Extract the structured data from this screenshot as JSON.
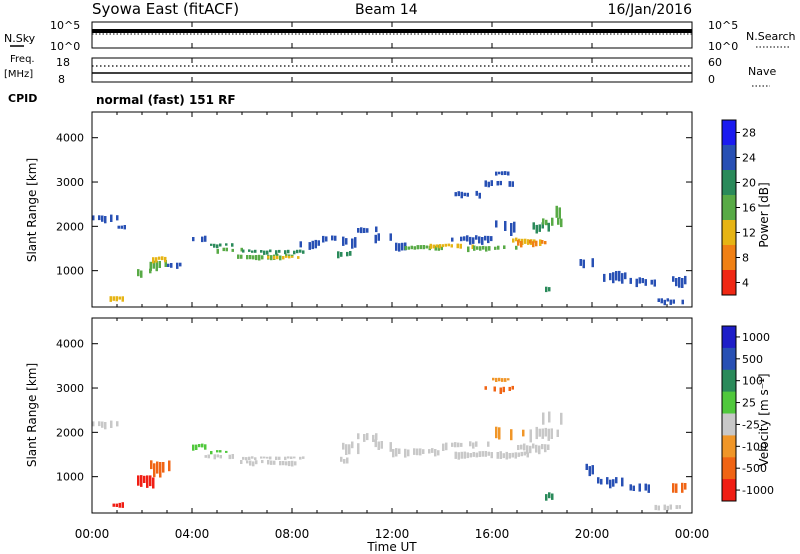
{
  "header": {
    "title": "Syowa East (fitACF)",
    "beam": "Beam 14",
    "date": "16/Jan/2016",
    "cpid_label": "CPID",
    "cpid_value": "normal (fast) 151 RF"
  },
  "small_panels": {
    "nsky": {
      "left_label": "N.Sky",
      "right_label": "N.Search",
      "left_ticks": [
        "10^5",
        "10^0"
      ],
      "right_ticks": [
        "10^5",
        "10^0"
      ]
    },
    "freq": {
      "left_label_1": "Freq.",
      "left_label_2": "[MHz]",
      "right_label": "Nave",
      "left_ticks": [
        "18",
        "8"
      ],
      "right_ticks": [
        "60",
        "0"
      ]
    }
  },
  "chart_data": [
    {
      "type": "heatmap",
      "name": "power",
      "ylabel": "Slant Range [km]",
      "ylim": [
        180,
        4580
      ],
      "yticks": [
        1000,
        2000,
        3000,
        4000
      ],
      "colorbar_label": "Power [dB]",
      "colorbar_ticks": [
        "4",
        "8",
        "12",
        "16",
        "20",
        "24",
        "28"
      ],
      "colorbar_colors": [
        "#1b1bf0",
        "#2850b4",
        "#2a8a5a",
        "#58aa46",
        "#e6b414",
        "#f08014",
        "#f02814"
      ],
      "segments": [
        {
          "t0": 0.0,
          "t1": 1.0,
          "r0": 2080,
          "r1": 2280,
          "c": 1
        },
        {
          "t0": 0.9,
          "t1": 1.3,
          "r0": 1930,
          "r1": 2050,
          "c": 1
        },
        {
          "t0": 0.7,
          "t1": 1.2,
          "r0": 300,
          "r1": 430,
          "c": 4
        },
        {
          "t0": 1.8,
          "t1": 2.3,
          "r0": 850,
          "r1": 1050,
          "c": 3
        },
        {
          "t0": 2.3,
          "t1": 3.0,
          "r0": 1000,
          "r1": 1250,
          "c": 3
        },
        {
          "t0": 2.4,
          "t1": 3.0,
          "r0": 1200,
          "r1": 1340,
          "c": 4
        },
        {
          "t0": 3.0,
          "t1": 3.6,
          "r0": 1050,
          "r1": 1200,
          "c": 1
        },
        {
          "t0": 4.0,
          "t1": 4.6,
          "r0": 1650,
          "r1": 1800,
          "c": 1
        },
        {
          "t0": 4.5,
          "t1": 6.0,
          "r0": 1400,
          "r1": 1520,
          "c": 3
        },
        {
          "t0": 4.6,
          "t1": 5.6,
          "r0": 1520,
          "r1": 1620,
          "c": 2
        },
        {
          "t0": 5.8,
          "t1": 8.0,
          "r0": 1250,
          "r1": 1380,
          "c": 3
        },
        {
          "t0": 7.0,
          "t1": 8.3,
          "r0": 1260,
          "r1": 1340,
          "c": 4
        },
        {
          "t0": 6.0,
          "t1": 8.5,
          "r0": 1380,
          "r1": 1480,
          "c": 2
        },
        {
          "t0": 8.3,
          "t1": 9.2,
          "r0": 1500,
          "r1": 1700,
          "c": 1
        },
        {
          "t0": 9.2,
          "t1": 9.7,
          "r0": 1650,
          "r1": 1800,
          "c": 1
        },
        {
          "t0": 9.8,
          "t1": 10.3,
          "r0": 1250,
          "r1": 1450,
          "c": 2
        },
        {
          "t0": 10.0,
          "t1": 10.7,
          "r0": 1550,
          "r1": 1800,
          "c": 1
        },
        {
          "t0": 10.6,
          "t1": 11.4,
          "r0": 1800,
          "r1": 2000,
          "c": 1
        },
        {
          "t0": 11.3,
          "t1": 12.0,
          "r0": 1600,
          "r1": 1850,
          "c": 1
        },
        {
          "t0": 12.0,
          "t1": 12.5,
          "r0": 1450,
          "r1": 1650,
          "c": 1
        },
        {
          "t0": 12.5,
          "t1": 14.0,
          "r0": 1450,
          "r1": 1580,
          "c": 3
        },
        {
          "t0": 13.5,
          "t1": 15.2,
          "r0": 1500,
          "r1": 1620,
          "c": 4
        },
        {
          "t0": 14.0,
          "t1": 16.0,
          "r0": 1620,
          "r1": 1800,
          "c": 1
        },
        {
          "t0": 15.0,
          "t1": 17.0,
          "r0": 1450,
          "r1": 1580,
          "c": 3
        },
        {
          "t0": 16.0,
          "t1": 17.0,
          "r0": 1850,
          "r1": 2150,
          "c": 1
        },
        {
          "t0": 16.8,
          "t1": 18.0,
          "r0": 1600,
          "r1": 1750,
          "c": 4
        },
        {
          "t0": 17.0,
          "t1": 18.2,
          "r0": 1550,
          "r1": 1700,
          "c": 5
        },
        {
          "t0": 17.5,
          "t1": 18.5,
          "r0": 1850,
          "r1": 2100,
          "c": 2
        },
        {
          "t0": 18.0,
          "t1": 18.8,
          "r0": 2000,
          "r1": 2200,
          "c": 3
        },
        {
          "t0": 18.3,
          "t1": 18.9,
          "r0": 2200,
          "r1": 2500,
          "c": 3
        },
        {
          "t0": 15.7,
          "t1": 16.8,
          "r0": 2900,
          "r1": 3050,
          "c": 1
        },
        {
          "t0": 16.0,
          "t1": 16.7,
          "r0": 3150,
          "r1": 3250,
          "c": 1
        },
        {
          "t0": 14.5,
          "t1": 15.5,
          "r0": 2650,
          "r1": 2800,
          "c": 1
        },
        {
          "t0": 18.0,
          "t1": 18.4,
          "r0": 500,
          "r1": 650,
          "c": 2
        },
        {
          "t0": 19.5,
          "t1": 20.2,
          "r0": 1050,
          "r1": 1300,
          "c": 1
        },
        {
          "t0": 20.2,
          "t1": 21.5,
          "r0": 750,
          "r1": 1000,
          "c": 1
        },
        {
          "t0": 21.5,
          "t1": 22.5,
          "r0": 650,
          "r1": 850,
          "c": 1
        },
        {
          "t0": 22.5,
          "t1": 23.8,
          "r0": 250,
          "r1": 380,
          "c": 1
        },
        {
          "t0": 23.2,
          "t1": 23.8,
          "r0": 650,
          "r1": 900,
          "c": 1
        }
      ]
    },
    {
      "type": "heatmap",
      "name": "velocity",
      "ylabel": "Slant Range [km]",
      "ylim": [
        180,
        4580
      ],
      "yticks": [
        1000,
        2000,
        3000,
        4000
      ],
      "colorbar_label": "Velocity [m s⁻¹]",
      "colorbar_ticks": [
        "1000",
        "500",
        "100",
        "25",
        "-25",
        "-100",
        "-500",
        "-1000"
      ],
      "colorbar_colors": [
        "#1e1ec8",
        "#2850b4",
        "#2a8a5a",
        "#50c83c",
        "#c8c8c8",
        "#f09628",
        "#f06414",
        "#f01e14"
      ],
      "segments": [
        {
          "t0": 0.0,
          "t1": 1.0,
          "r0": 2080,
          "r1": 2280,
          "c": 4
        },
        {
          "t0": 0.7,
          "t1": 1.2,
          "r0": 300,
          "r1": 430,
          "c": 7
        },
        {
          "t0": 1.8,
          "t1": 2.6,
          "r0": 750,
          "r1": 1050,
          "c": 7
        },
        {
          "t0": 2.2,
          "t1": 3.1,
          "r0": 1000,
          "r1": 1380,
          "c": 6
        },
        {
          "t0": 4.0,
          "t1": 4.5,
          "r0": 1620,
          "r1": 1760,
          "c": 3
        },
        {
          "t0": 4.5,
          "t1": 6.0,
          "r0": 1400,
          "r1": 1520,
          "c": 4
        },
        {
          "t0": 4.6,
          "t1": 5.5,
          "r0": 1520,
          "r1": 1600,
          "c": 3
        },
        {
          "t0": 5.8,
          "t1": 8.3,
          "r0": 1250,
          "r1": 1380,
          "c": 4
        },
        {
          "t0": 6.0,
          "t1": 8.5,
          "r0": 1380,
          "r1": 1460,
          "c": 4
        },
        {
          "t0": 9.8,
          "t1": 10.3,
          "r0": 1250,
          "r1": 1450,
          "c": 4
        },
        {
          "t0": 10.0,
          "t1": 10.7,
          "r0": 1550,
          "r1": 1800,
          "c": 4
        },
        {
          "t0": 10.6,
          "t1": 11.4,
          "r0": 1800,
          "r1": 2000,
          "c": 4
        },
        {
          "t0": 11.3,
          "t1": 12.0,
          "r0": 1600,
          "r1": 1850,
          "c": 4
        },
        {
          "t0": 12.0,
          "t1": 14.0,
          "r0": 1450,
          "r1": 1650,
          "c": 4
        },
        {
          "t0": 14.0,
          "t1": 16.0,
          "r0": 1620,
          "r1": 1800,
          "c": 4
        },
        {
          "t0": 14.5,
          "t1": 17.5,
          "r0": 1400,
          "r1": 1580,
          "c": 4
        },
        {
          "t0": 16.0,
          "t1": 17.5,
          "r0": 1850,
          "r1": 2150,
          "c": 5
        },
        {
          "t0": 17.0,
          "t1": 18.3,
          "r0": 1550,
          "r1": 1750,
          "c": 4
        },
        {
          "t0": 17.5,
          "t1": 18.6,
          "r0": 1850,
          "r1": 2150,
          "c": 4
        },
        {
          "t0": 18.0,
          "t1": 18.9,
          "r0": 2100,
          "r1": 2500,
          "c": 4
        },
        {
          "t0": 15.7,
          "t1": 16.8,
          "r0": 2900,
          "r1": 3050,
          "c": 6
        },
        {
          "t0": 16.0,
          "t1": 16.7,
          "r0": 3150,
          "r1": 3250,
          "c": 5
        },
        {
          "t0": 18.0,
          "t1": 18.4,
          "r0": 500,
          "r1": 650,
          "c": 2
        },
        {
          "t0": 19.5,
          "t1": 20.2,
          "r0": 1050,
          "r1": 1300,
          "c": 1
        },
        {
          "t0": 20.2,
          "t1": 21.5,
          "r0": 750,
          "r1": 1000,
          "c": 1
        },
        {
          "t0": 21.5,
          "t1": 22.5,
          "r0": 650,
          "r1": 850,
          "c": 1
        },
        {
          "t0": 22.5,
          "t1": 23.8,
          "r0": 250,
          "r1": 380,
          "c": 4
        },
        {
          "t0": 23.2,
          "t1": 23.8,
          "r0": 650,
          "r1": 900,
          "c": 6
        }
      ]
    }
  ],
  "xaxis": {
    "label": "Time UT",
    "xlim": [
      0,
      24
    ],
    "ticks": [
      0,
      4,
      8,
      12,
      16,
      20,
      24
    ],
    "tick_labels": [
      "00:00",
      "04:00",
      "08:00",
      "12:00",
      "16:00",
      "20:00",
      "00:00"
    ]
  }
}
